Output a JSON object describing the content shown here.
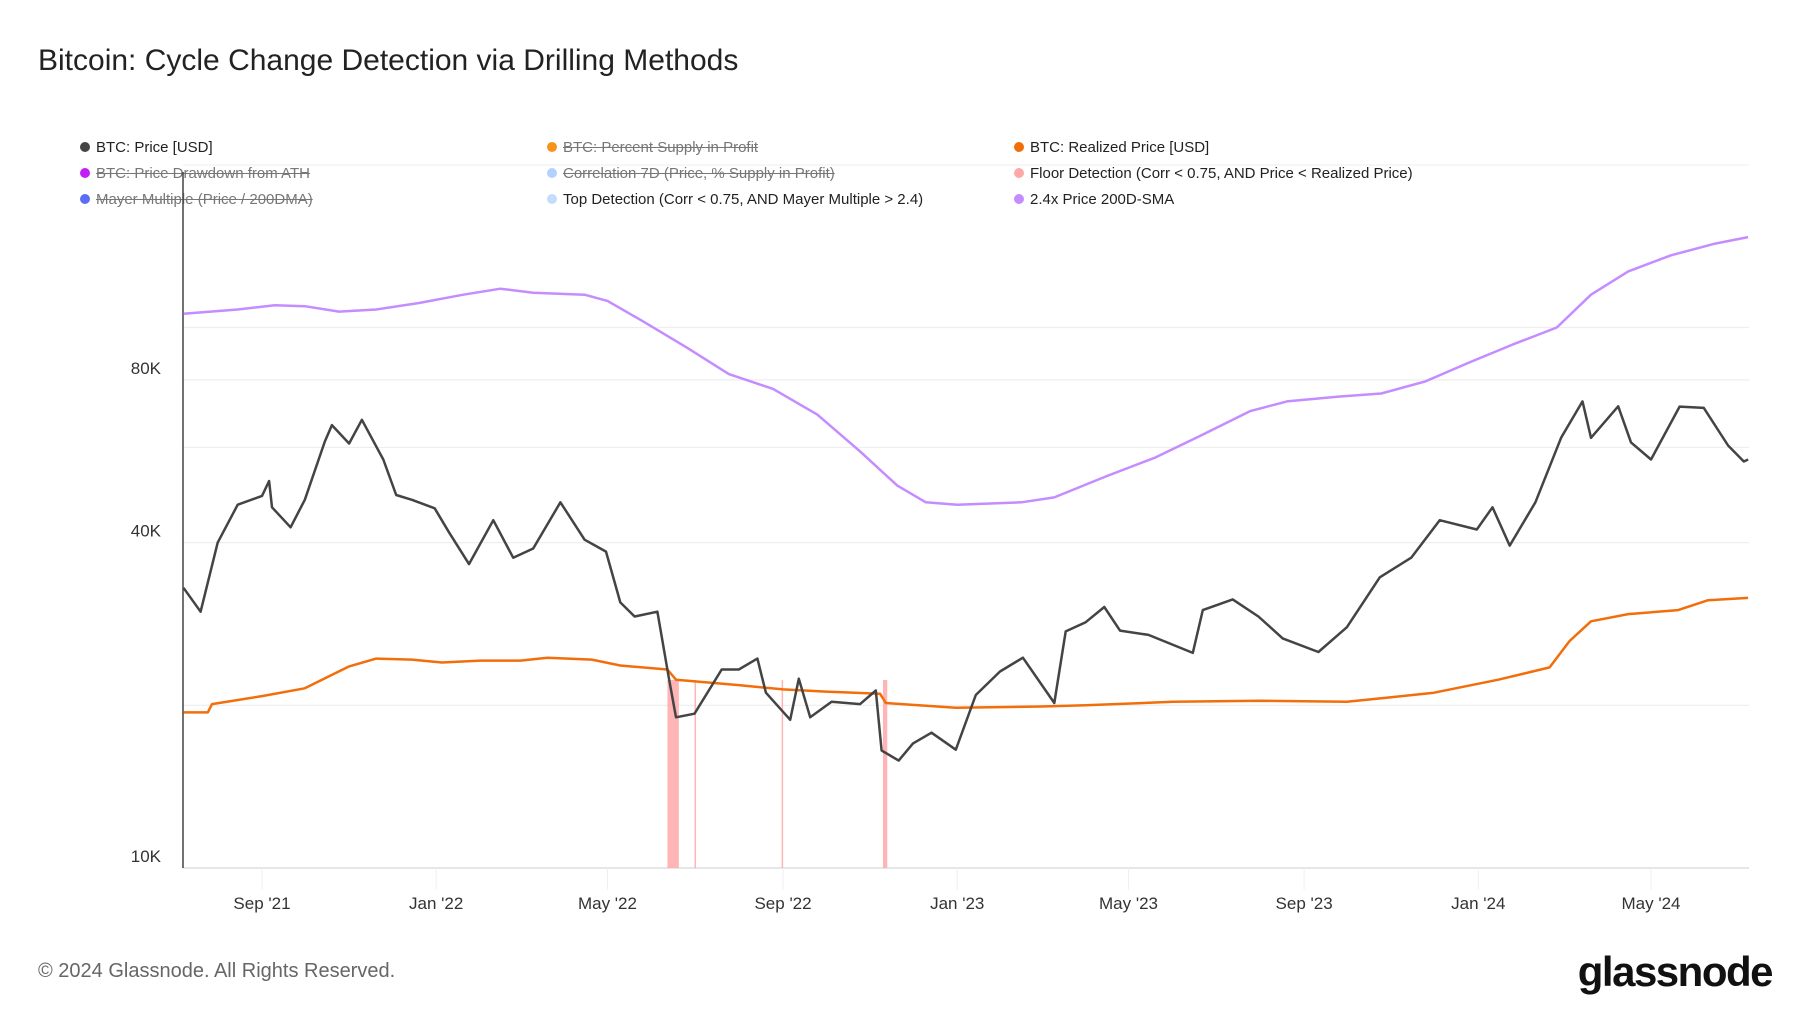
{
  "title": "Bitcoin: Cycle Change Detection via Drilling Methods",
  "legend": [
    {
      "label": "BTC: Price [USD]",
      "color": "#444444",
      "visible": true
    },
    {
      "label": "BTC: Percent Supply in Profit",
      "color": "#f7931a",
      "visible": false
    },
    {
      "label": "BTC: Realized Price [USD]",
      "color": "#f26e0b",
      "visible": true
    },
    {
      "label": "BTC: Price Drawdown from ATH",
      "color": "#c21df5",
      "visible": false
    },
    {
      "label": "Correlation 7D (Price, % Supply in Profit)",
      "color": "#b3d1ff",
      "visible": false
    },
    {
      "label": "Floor Detection (Corr < 0.75, AND Price < Realized Price)",
      "color": "#ffa8a8",
      "visible": true
    },
    {
      "label": "Mayer Multiple (Price / 200DMA)",
      "color": "#5b6cf5",
      "visible": false
    },
    {
      "label": "Top Detection (Corr < 0.75, AND Mayer Multiple > 2.4)",
      "color": "#c4ddff",
      "visible": true
    },
    {
      "label": "2.4x Price 200D-SMA",
      "color": "#c48cff",
      "visible": true
    }
  ],
  "footer": "© 2024 Glassnode. All Rights Reserved.",
  "logo": "glassnode",
  "chart_data": {
    "type": "line",
    "title": "Bitcoin: Cycle Change Detection via Drilling Methods",
    "xlabel": "",
    "ylabel": "",
    "y_scale": "log",
    "ylim": [
      10000,
      200000
    ],
    "xlim": [
      "2021-07-08",
      "2024-07-08"
    ],
    "grid": true,
    "legend_position": "top",
    "y_ticks": [
      {
        "value": 10000,
        "label": "10K"
      },
      {
        "value": 40000,
        "label": "40K"
      },
      {
        "value": 80000,
        "label": "80K"
      }
    ],
    "y_gridlines": [
      20000,
      40000,
      60000,
      80000,
      100000
    ],
    "x_ticks": [
      {
        "date": "2021-09-01",
        "label": "Sep '21"
      },
      {
        "date": "2022-01-01",
        "label": "Jan '22"
      },
      {
        "date": "2022-05-01",
        "label": "May '22"
      },
      {
        "date": "2022-09-01",
        "label": "Sep '22"
      },
      {
        "date": "2023-01-01",
        "label": "Jan '23"
      },
      {
        "date": "2023-05-01",
        "label": "May '23"
      },
      {
        "date": "2023-09-01",
        "label": "Sep '23"
      },
      {
        "date": "2024-01-01",
        "label": "Jan '24"
      },
      {
        "date": "2024-05-01",
        "label": "May '24"
      }
    ],
    "series": [
      {
        "name": "2.4x Price 200D-SMA",
        "color": "#c48cff",
        "points": [
          [
            "2021-07-08",
            106000
          ],
          [
            "2021-08-15",
            108000
          ],
          [
            "2021-09-10",
            110000
          ],
          [
            "2021-10-01",
            109500
          ],
          [
            "2021-10-25",
            107000
          ],
          [
            "2021-11-20",
            108000
          ],
          [
            "2021-12-20",
            111000
          ],
          [
            "2022-01-20",
            115000
          ],
          [
            "2022-02-15",
            118000
          ],
          [
            "2022-03-10",
            116000
          ],
          [
            "2022-04-15",
            115000
          ],
          [
            "2022-05-01",
            112000
          ],
          [
            "2022-05-25",
            103000
          ],
          [
            "2022-06-25",
            92000
          ],
          [
            "2022-07-25",
            82000
          ],
          [
            "2022-08-25",
            77000
          ],
          [
            "2022-09-25",
            69000
          ],
          [
            "2022-10-25",
            59000
          ],
          [
            "2022-11-20",
            51000
          ],
          [
            "2022-12-10",
            47500
          ],
          [
            "2023-01-01",
            47000
          ],
          [
            "2023-02-15",
            47500
          ],
          [
            "2023-03-10",
            48500
          ],
          [
            "2023-04-15",
            53000
          ],
          [
            "2023-05-20",
            57500
          ],
          [
            "2023-06-20",
            63000
          ],
          [
            "2023-07-25",
            70000
          ],
          [
            "2023-08-20",
            73000
          ],
          [
            "2023-09-25",
            74500
          ],
          [
            "2023-10-25",
            75500
          ],
          [
            "2023-11-25",
            79500
          ],
          [
            "2023-12-25",
            86000
          ],
          [
            "2024-01-25",
            93000
          ],
          [
            "2024-02-25",
            100000
          ],
          [
            "2024-03-20",
            115000
          ],
          [
            "2024-04-15",
            127000
          ],
          [
            "2024-05-15",
            136000
          ],
          [
            "2024-06-15",
            143000
          ],
          [
            "2024-07-08",
            147000
          ]
        ]
      },
      {
        "name": "BTC: Realized Price [USD]",
        "color": "#f26e0b",
        "points": [
          [
            "2021-07-08",
            19400
          ],
          [
            "2021-07-25",
            19400
          ],
          [
            "2021-07-28",
            20100
          ],
          [
            "2021-09-01",
            20800
          ],
          [
            "2021-10-01",
            21500
          ],
          [
            "2021-11-01",
            23600
          ],
          [
            "2021-11-20",
            24400
          ],
          [
            "2021-12-15",
            24300
          ],
          [
            "2022-01-05",
            24000
          ],
          [
            "2022-02-01",
            24200
          ],
          [
            "2022-03-01",
            24200
          ],
          [
            "2022-03-20",
            24500
          ],
          [
            "2022-04-20",
            24300
          ],
          [
            "2022-05-10",
            23700
          ],
          [
            "2022-06-12",
            23300
          ],
          [
            "2022-06-18",
            22300
          ],
          [
            "2022-08-01",
            21800
          ],
          [
            "2022-09-01",
            21400
          ],
          [
            "2022-10-01",
            21200
          ],
          [
            "2022-11-08",
            21000
          ],
          [
            "2022-11-12",
            20200
          ],
          [
            "2022-12-31",
            19800
          ],
          [
            "2023-03-01",
            19900
          ],
          [
            "2023-04-01",
            20000
          ],
          [
            "2023-06-01",
            20300
          ],
          [
            "2023-08-01",
            20400
          ],
          [
            "2023-10-01",
            20300
          ],
          [
            "2023-11-01",
            20700
          ],
          [
            "2023-12-01",
            21100
          ],
          [
            "2024-01-15",
            22300
          ],
          [
            "2024-02-20",
            23500
          ],
          [
            "2024-03-05",
            26300
          ],
          [
            "2024-03-20",
            28600
          ],
          [
            "2024-04-15",
            29500
          ],
          [
            "2024-05-20",
            30000
          ],
          [
            "2024-06-10",
            31300
          ],
          [
            "2024-07-08",
            31600
          ]
        ]
      },
      {
        "name": "BTC: Price [USD]",
        "color": "#444444",
        "points": [
          [
            "2021-07-08",
            33000
          ],
          [
            "2021-07-20",
            29800
          ],
          [
            "2021-08-01",
            40000
          ],
          [
            "2021-08-15",
            47000
          ],
          [
            "2021-09-01",
            48800
          ],
          [
            "2021-09-06",
            52000
          ],
          [
            "2021-09-08",
            46500
          ],
          [
            "2021-09-21",
            42700
          ],
          [
            "2021-10-01",
            48000
          ],
          [
            "2021-10-15",
            61500
          ],
          [
            "2021-10-20",
            66000
          ],
          [
            "2021-11-01",
            61000
          ],
          [
            "2021-11-10",
            67500
          ],
          [
            "2021-11-25",
            57000
          ],
          [
            "2021-12-04",
            49000
          ],
          [
            "2021-12-15",
            48000
          ],
          [
            "2021-12-31",
            46300
          ],
          [
            "2022-01-10",
            41800
          ],
          [
            "2022-01-24",
            36500
          ],
          [
            "2022-02-10",
            44000
          ],
          [
            "2022-02-24",
            37500
          ],
          [
            "2022-03-10",
            39000
          ],
          [
            "2022-03-29",
            47500
          ],
          [
            "2022-04-15",
            40500
          ],
          [
            "2022-04-30",
            38500
          ],
          [
            "2022-05-10",
            31000
          ],
          [
            "2022-05-20",
            29200
          ],
          [
            "2022-06-05",
            29800
          ],
          [
            "2022-06-13",
            22500
          ],
          [
            "2022-06-18",
            19000
          ],
          [
            "2022-07-01",
            19300
          ],
          [
            "2022-07-20",
            23300
          ],
          [
            "2022-08-01",
            23300
          ],
          [
            "2022-08-14",
            24400
          ],
          [
            "2022-08-20",
            21100
          ],
          [
            "2022-09-06",
            18800
          ],
          [
            "2022-09-12",
            22400
          ],
          [
            "2022-09-20",
            19000
          ],
          [
            "2022-10-05",
            20300
          ],
          [
            "2022-10-25",
            20100
          ],
          [
            "2022-11-05",
            21300
          ],
          [
            "2022-11-09",
            16500
          ],
          [
            "2022-11-21",
            15800
          ],
          [
            "2022-12-01",
            17000
          ],
          [
            "2022-12-14",
            17800
          ],
          [
            "2022-12-31",
            16550
          ],
          [
            "2023-01-14",
            20900
          ],
          [
            "2023-01-31",
            23100
          ],
          [
            "2023-02-16",
            24500
          ],
          [
            "2023-03-10",
            20200
          ],
          [
            "2023-03-18",
            27400
          ],
          [
            "2023-04-01",
            28500
          ],
          [
            "2023-04-14",
            30400
          ],
          [
            "2023-04-25",
            27500
          ],
          [
            "2023-05-15",
            27000
          ],
          [
            "2023-06-15",
            25000
          ],
          [
            "2023-06-22",
            30000
          ],
          [
            "2023-07-13",
            31400
          ],
          [
            "2023-07-31",
            29200
          ],
          [
            "2023-08-17",
            26600
          ],
          [
            "2023-09-11",
            25100
          ],
          [
            "2023-10-01",
            27900
          ],
          [
            "2023-10-24",
            34500
          ],
          [
            "2023-11-15",
            37500
          ],
          [
            "2023-12-05",
            44000
          ],
          [
            "2023-12-31",
            42300
          ],
          [
            "2024-01-11",
            46500
          ],
          [
            "2024-01-23",
            39500
          ],
          [
            "2024-02-10",
            47500
          ],
          [
            "2024-02-28",
            62500
          ],
          [
            "2024-03-14",
            73000
          ],
          [
            "2024-03-20",
            62500
          ],
          [
            "2024-04-08",
            71500
          ],
          [
            "2024-04-17",
            61300
          ],
          [
            "2024-05-01",
            57000
          ],
          [
            "2024-05-21",
            71400
          ],
          [
            "2024-06-07",
            71000
          ],
          [
            "2024-06-24",
            60500
          ],
          [
            "2024-07-05",
            56500
          ],
          [
            "2024-07-08",
            57000
          ]
        ]
      }
    ],
    "floor_detection_periods": [
      [
        "2022-06-12",
        "2022-06-20"
      ],
      [
        "2022-07-01",
        "2022-07-02"
      ],
      [
        "2022-08-31",
        "2022-09-01"
      ],
      [
        "2022-11-10",
        "2022-11-13"
      ]
    ]
  }
}
